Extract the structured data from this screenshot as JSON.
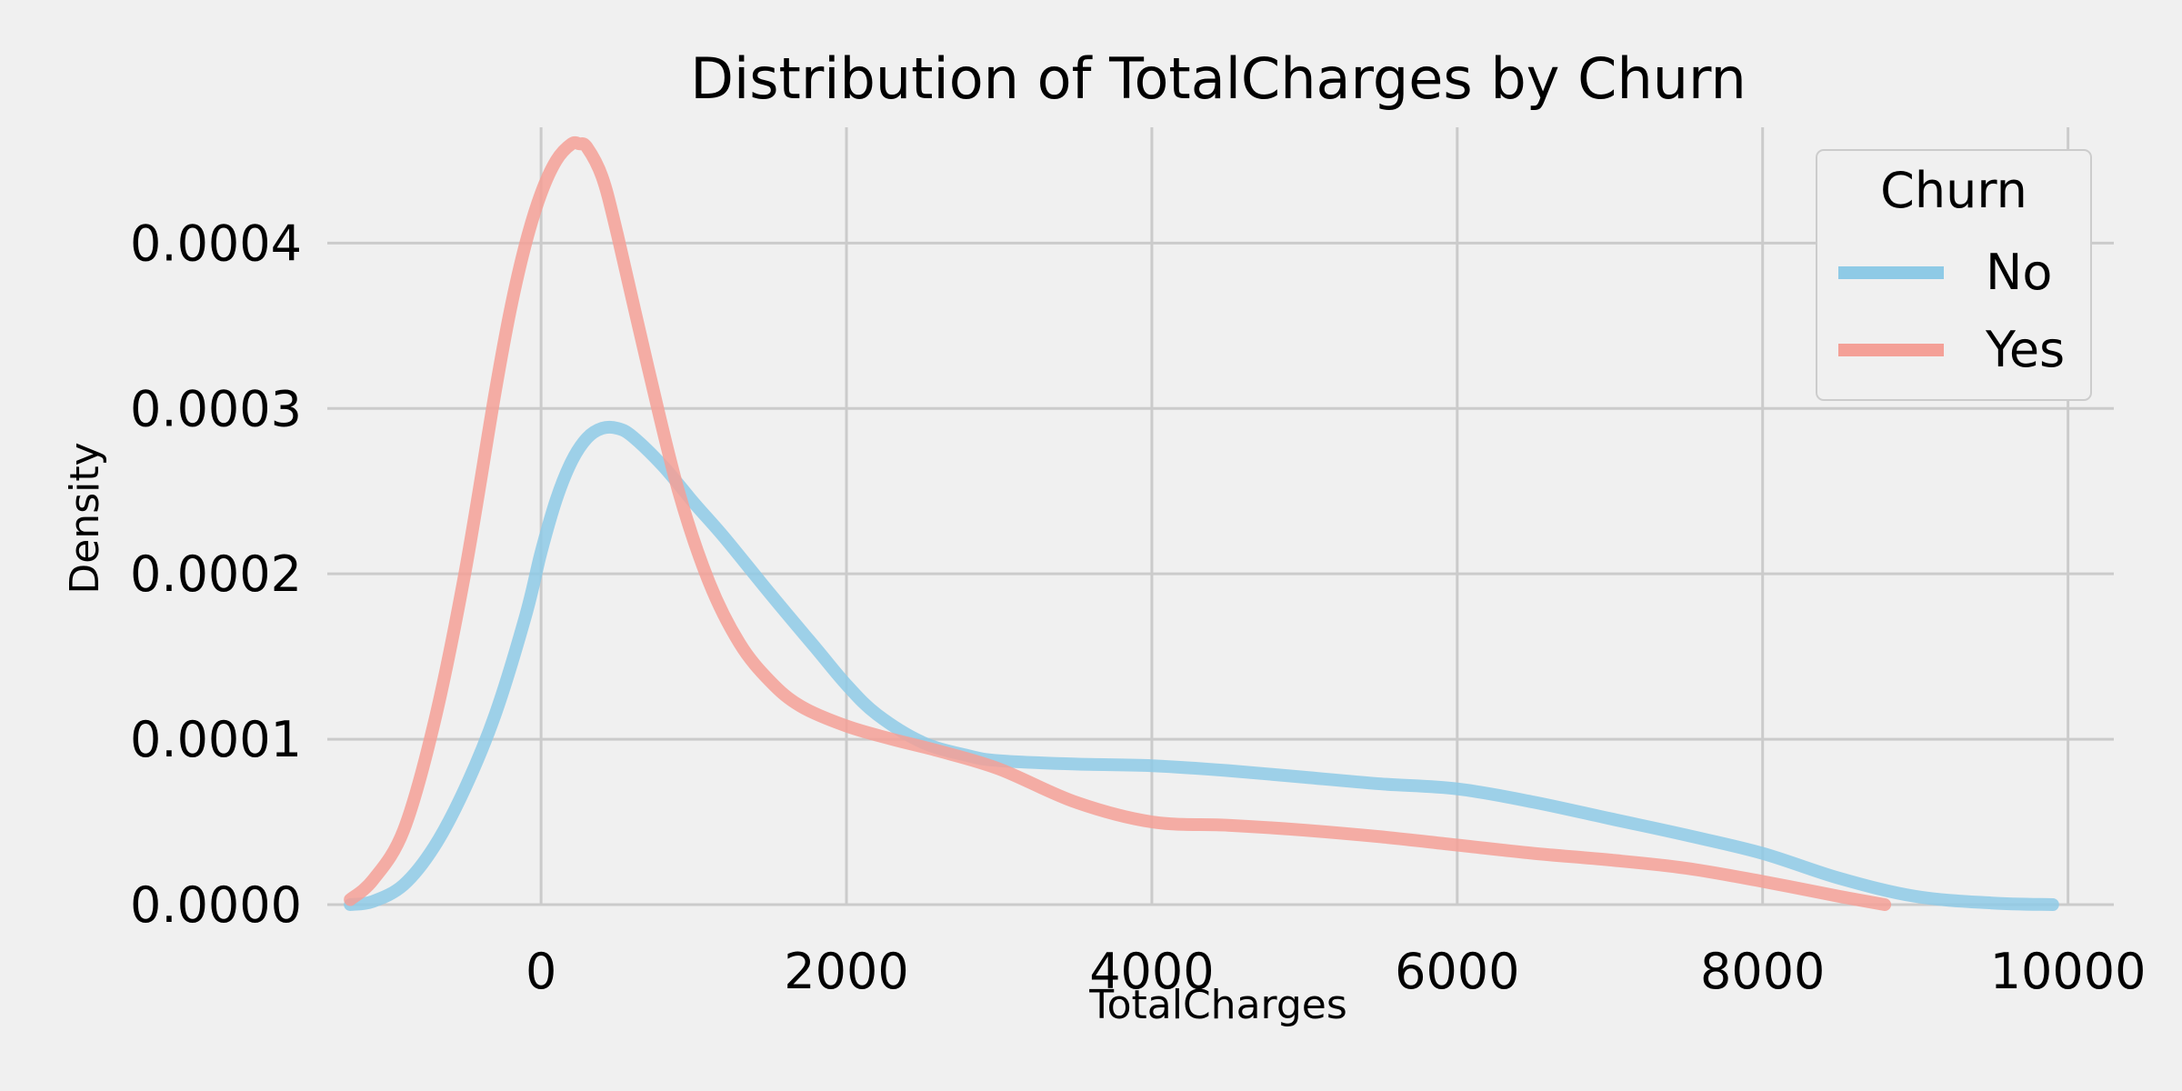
{
  "chart_data": {
    "type": "line",
    "title": "Distribution of TotalCharges by Churn",
    "xlabel": "TotalCharges",
    "ylabel": "Density",
    "xlim": [
      -1400,
      10300
    ],
    "ylim": [
      0,
      0.00047
    ],
    "xticks": [
      0,
      2000,
      4000,
      6000,
      8000,
      10000
    ],
    "xtick_labels": [
      "0",
      "2000",
      "4000",
      "6000",
      "8000",
      "10000"
    ],
    "yticks": [
      0,
      0.0001,
      0.0002,
      0.0003,
      0.0004
    ],
    "ytick_labels": [
      "0.0000",
      "0.0001",
      "0.0002",
      "0.0003",
      "0.0004"
    ],
    "grid": true,
    "legend": {
      "title": "Churn",
      "placement": "top-right"
    },
    "series": [
      {
        "name": "No",
        "color": "#8ecae6",
        "x": [
          -1250,
          -1100,
          -900,
          -700,
          -500,
          -300,
          -100,
          0,
          100,
          200,
          300,
          400,
          500,
          600,
          800,
          1000,
          1200,
          1500,
          1800,
          2000,
          2200,
          2500,
          2800,
          3000,
          3500,
          4000,
          4500,
          5000,
          5500,
          6000,
          6500,
          7000,
          7500,
          8000,
          8500,
          9000,
          9500,
          9900
        ],
        "y": [
          0.0,
          2e-06,
          1.2e-05,
          3.5e-05,
          7e-05,
          0.000115,
          0.000175,
          0.000213,
          0.000245,
          0.000268,
          0.000282,
          0.000288,
          0.000288,
          0.000283,
          0.000265,
          0.000243,
          0.000222,
          0.000188,
          0.000155,
          0.000133,
          0.000115,
          9.8e-05,
          9e-05,
          8.7e-05,
          8.5e-05,
          8.4e-05,
          8.1e-05,
          7.7e-05,
          7.3e-05,
          7e-05,
          6.2e-05,
          5.2e-05,
          4.2e-05,
          3.1e-05,
          1.6e-05,
          5e-06,
          1e-06,
          0.0
        ]
      },
      {
        "name": "Yes",
        "color": "#f4a097",
        "x": [
          -1250,
          -1100,
          -900,
          -700,
          -500,
          -300,
          -200,
          -100,
          0,
          100,
          200,
          250,
          300,
          400,
          500,
          700,
          900,
          1100,
          1300,
          1500,
          1700,
          2000,
          2300,
          2600,
          3000,
          3500,
          4000,
          4500,
          5000,
          5500,
          6000,
          6500,
          7000,
          7500,
          8000,
          8500,
          8800
        ],
        "y": [
          3e-06,
          1.5e-05,
          4.5e-05,
          0.00011,
          0.0002,
          0.00031,
          0.00036,
          0.0004,
          0.00043,
          0.00045,
          0.00046,
          0.00046,
          0.000458,
          0.00044,
          0.000405,
          0.000325,
          0.00025,
          0.000195,
          0.000158,
          0.000135,
          0.00012,
          0.000108,
          0.0001,
          9.3e-05,
          8.2e-05,
          6.2e-05,
          5e-05,
          4.8e-05,
          4.5e-05,
          4.1e-05,
          3.6e-05,
          3.1e-05,
          2.7e-05,
          2.2e-05,
          1.4e-05,
          5e-06,
          0.0
        ]
      }
    ]
  }
}
